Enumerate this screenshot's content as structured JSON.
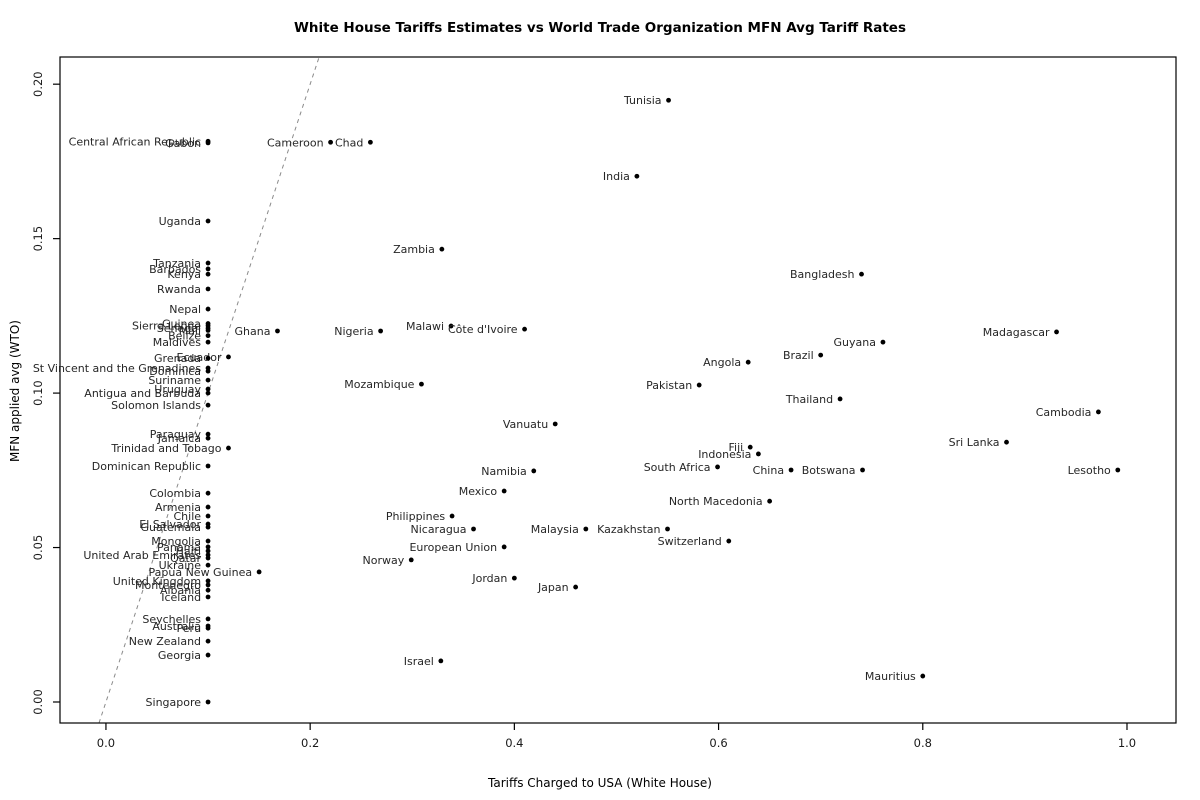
{
  "chart_data": {
    "type": "scatter",
    "title": "White House Tariffs Estimates vs World Trade Organization MFN Avg Tariff Rates",
    "xlabel": "Tariffs Charged to USA (White House)",
    "ylabel": "MFN applied avg (WTO)",
    "xlim": [
      -0.045,
      1.048
    ],
    "ylim": [
      -0.0068,
      0.2088
    ],
    "grid": false,
    "legend": "none",
    "x_ticks": [
      {
        "v": 0.0,
        "label": "0.0"
      },
      {
        "v": 0.2,
        "label": "0.2"
      },
      {
        "v": 0.4,
        "label": "0.4"
      },
      {
        "v": 0.6,
        "label": "0.6"
      },
      {
        "v": 0.8,
        "label": "0.8"
      },
      {
        "v": 1.0,
        "label": "1.0"
      }
    ],
    "y_ticks": [
      {
        "v": 0.0,
        "label": "0.00"
      },
      {
        "v": 0.05,
        "label": "0.05"
      },
      {
        "v": 0.1,
        "label": "0.10"
      },
      {
        "v": 0.15,
        "label": "0.15"
      },
      {
        "v": 0.2,
        "label": "0.20"
      }
    ],
    "identity_line": {
      "x0": -0.0068,
      "y0": -0.0068,
      "x1": 0.2087,
      "y1": 0.2087,
      "style": "dashed",
      "color": "#8a8a8a"
    },
    "point_color": "#000000",
    "label_color": "#262626",
    "points": [
      {
        "label": "Tunisia",
        "x": 0.551,
        "y": 0.1948
      },
      {
        "label": "Central African Republic",
        "x": 0.1,
        "y": 0.1815
      },
      {
        "label": "Gabon",
        "x": 0.1,
        "y": 0.181
      },
      {
        "label": "Cameroon",
        "x": 0.22,
        "y": 0.1812
      },
      {
        "label": "Chad",
        "x": 0.259,
        "y": 0.1812
      },
      {
        "label": "India",
        "x": 0.52,
        "y": 0.1702
      },
      {
        "label": "Uganda",
        "x": 0.1,
        "y": 0.1557
      },
      {
        "label": "Zambia",
        "x": 0.329,
        "y": 0.1466
      },
      {
        "label": "Tanzania",
        "x": 0.1,
        "y": 0.1421
      },
      {
        "label": "Barbados",
        "x": 0.1,
        "y": 0.1402
      },
      {
        "label": "Kenya",
        "x": 0.1,
        "y": 0.1385
      },
      {
        "label": "Bangladesh",
        "x": 0.74,
        "y": 0.1385
      },
      {
        "label": "Rwanda",
        "x": 0.1,
        "y": 0.1337
      },
      {
        "label": "Nepal",
        "x": 0.1,
        "y": 0.1272
      },
      {
        "label": "Guinea",
        "x": 0.1,
        "y": 0.1225
      },
      {
        "label": "Sierra Leone",
        "x": 0.1,
        "y": 0.1218
      },
      {
        "label": "Senegal",
        "x": 0.1,
        "y": 0.121
      },
      {
        "label": "Mali",
        "x": 0.1,
        "y": 0.1203
      },
      {
        "label": "Belize",
        "x": 0.1,
        "y": 0.1186
      },
      {
        "label": "Ghana",
        "x": 0.168,
        "y": 0.1201
      },
      {
        "label": "Nigeria",
        "x": 0.269,
        "y": 0.1201
      },
      {
        "label": "Malawi",
        "x": 0.338,
        "y": 0.1217
      },
      {
        "label": "Côte d'Ivoire",
        "x": 0.41,
        "y": 0.1207
      },
      {
        "label": "Madagascar",
        "x": 0.931,
        "y": 0.1198
      },
      {
        "label": "Guyana",
        "x": 0.761,
        "y": 0.1165
      },
      {
        "label": "Brazil",
        "x": 0.7,
        "y": 0.1123
      },
      {
        "label": "Angola",
        "x": 0.629,
        "y": 0.11
      },
      {
        "label": "Maldives",
        "x": 0.1,
        "y": 0.1165
      },
      {
        "label": "Ecuador",
        "x": 0.12,
        "y": 0.1117
      },
      {
        "label": "Grenada",
        "x": 0.1,
        "y": 0.1113
      },
      {
        "label": "St Vincent and the Grenadines",
        "x": 0.1,
        "y": 0.1081
      },
      {
        "label": "Dominica",
        "x": 0.1,
        "y": 0.1071
      },
      {
        "label": "Suriname",
        "x": 0.1,
        "y": 0.1042
      },
      {
        "label": "Uruguay",
        "x": 0.1,
        "y": 0.1013
      },
      {
        "label": "Antigua and Barbuda",
        "x": 0.1,
        "y": 0.1
      },
      {
        "label": "Solomon Islands",
        "x": 0.1,
        "y": 0.0961
      },
      {
        "label": "Mozambique",
        "x": 0.309,
        "y": 0.1029
      },
      {
        "label": "Pakistan",
        "x": 0.581,
        "y": 0.1026
      },
      {
        "label": "Thailand",
        "x": 0.719,
        "y": 0.0981
      },
      {
        "label": "Cambodia",
        "x": 0.972,
        "y": 0.0939
      },
      {
        "label": "Vanuatu",
        "x": 0.44,
        "y": 0.09
      },
      {
        "label": "Sri Lanka",
        "x": 0.882,
        "y": 0.0841
      },
      {
        "label": "Paraguay",
        "x": 0.1,
        "y": 0.0867
      },
      {
        "label": "Jamaica",
        "x": 0.1,
        "y": 0.0854
      },
      {
        "label": "Trinidad and Tobago",
        "x": 0.12,
        "y": 0.0822
      },
      {
        "label": "Fiji",
        "x": 0.631,
        "y": 0.0825
      },
      {
        "label": "Indonesia",
        "x": 0.639,
        "y": 0.0803
      },
      {
        "label": "South Africa",
        "x": 0.599,
        "y": 0.0761
      },
      {
        "label": "China",
        "x": 0.671,
        "y": 0.0751
      },
      {
        "label": "Botswana",
        "x": 0.741,
        "y": 0.0751
      },
      {
        "label": "Lesotho",
        "x": 0.991,
        "y": 0.0751
      },
      {
        "label": "Namibia",
        "x": 0.419,
        "y": 0.0748
      },
      {
        "label": "Dominican Republic",
        "x": 0.1,
        "y": 0.0764
      },
      {
        "label": "Mexico",
        "x": 0.39,
        "y": 0.0683
      },
      {
        "label": "North Macedonia",
        "x": 0.65,
        "y": 0.065
      },
      {
        "label": "Colombia",
        "x": 0.1,
        "y": 0.0676
      },
      {
        "label": "Armenia",
        "x": 0.1,
        "y": 0.0631
      },
      {
        "label": "Chile",
        "x": 0.1,
        "y": 0.0602
      },
      {
        "label": "El Salvador",
        "x": 0.1,
        "y": 0.0576
      },
      {
        "label": "Guatemala",
        "x": 0.1,
        "y": 0.0566
      },
      {
        "label": "Philippines",
        "x": 0.339,
        "y": 0.0602
      },
      {
        "label": "Nicaragua",
        "x": 0.36,
        "y": 0.056
      },
      {
        "label": "Malaysia",
        "x": 0.47,
        "y": 0.056
      },
      {
        "label": "Kazakhstan",
        "x": 0.55,
        "y": 0.056
      },
      {
        "label": "Switzerland",
        "x": 0.61,
        "y": 0.0521
      },
      {
        "label": "European Union",
        "x": 0.39,
        "y": 0.0502
      },
      {
        "label": "Norway",
        "x": 0.299,
        "y": 0.046
      },
      {
        "label": "Mongolia",
        "x": 0.1,
        "y": 0.0521
      },
      {
        "label": "Panama",
        "x": 0.1,
        "y": 0.0502
      },
      {
        "label": "Haiti",
        "x": 0.1,
        "y": 0.0489
      },
      {
        "label": "United Arab Emirates",
        "x": 0.1,
        "y": 0.0476
      },
      {
        "label": "Qatar",
        "x": 0.1,
        "y": 0.0466
      },
      {
        "label": "Ukraine",
        "x": 0.1,
        "y": 0.0443
      },
      {
        "label": "Papua New Guinea",
        "x": 0.15,
        "y": 0.0421
      },
      {
        "label": "Jordan",
        "x": 0.4,
        "y": 0.0401
      },
      {
        "label": "Japan",
        "x": 0.46,
        "y": 0.0372
      },
      {
        "label": "United Kingdom",
        "x": 0.1,
        "y": 0.0392
      },
      {
        "label": "Montenegro",
        "x": 0.1,
        "y": 0.0379
      },
      {
        "label": "Albania",
        "x": 0.1,
        "y": 0.0362
      },
      {
        "label": "Iceland",
        "x": 0.1,
        "y": 0.034
      },
      {
        "label": "Seychelles",
        "x": 0.1,
        "y": 0.0269
      },
      {
        "label": "Australia",
        "x": 0.1,
        "y": 0.0246
      },
      {
        "label": "Peru",
        "x": 0.1,
        "y": 0.0239
      },
      {
        "label": "New Zealand",
        "x": 0.1,
        "y": 0.0197
      },
      {
        "label": "Georgia",
        "x": 0.1,
        "y": 0.0152
      },
      {
        "label": "Israel",
        "x": 0.328,
        "y": 0.0133
      },
      {
        "label": "Mauritius",
        "x": 0.8,
        "y": 0.0084
      },
      {
        "label": "Singapore",
        "x": 0.1,
        "y": 0.0
      }
    ]
  }
}
